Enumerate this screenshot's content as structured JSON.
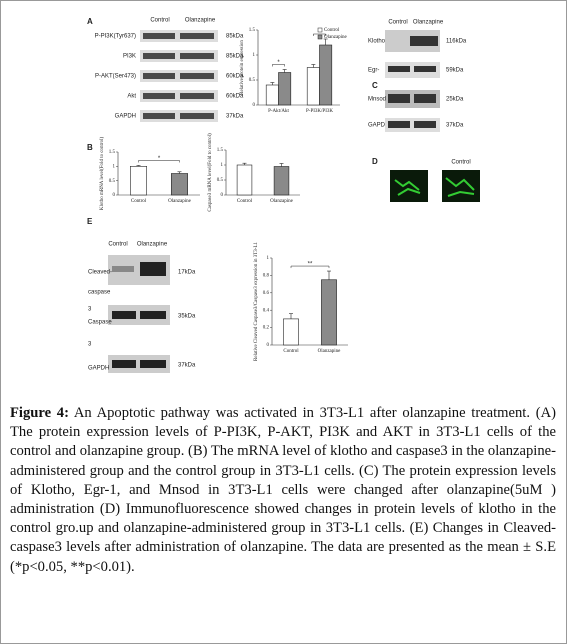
{
  "chart_data": [
    {
      "type": "bar",
      "ylabel": "Relative protein expression",
      "categories": [
        "P-Akt/Akt",
        "P-PI3K/PI3K"
      ],
      "series": [
        {
          "name": "Control",
          "color": "#ffffff",
          "values": [
            0.4,
            0.75
          ],
          "errors": [
            0.05,
            0.06
          ]
        },
        {
          "name": "Olanzapine",
          "color": "#8a8a8a",
          "values": [
            0.65,
            1.2
          ],
          "errors": [
            0.06,
            0.12
          ]
        }
      ],
      "ylim": [
        0,
        1.5
      ],
      "yticks": [
        0,
        0.5,
        1,
        1.5
      ],
      "annotations": [
        "*",
        "*"
      ],
      "legend": "top-right"
    },
    {
      "type": "bar",
      "ylabel": "Klotho mRNA level(Fold to control)",
      "categories": [
        "Control",
        "Olanzapine"
      ],
      "values": [
        1,
        0.75
      ],
      "errors": [
        0.03,
        0.06
      ],
      "colors": [
        "#ffffff",
        "#8a8a8a"
      ],
      "ylim": [
        0,
        1.5
      ],
      "yticks": [
        0,
        0.5,
        1,
        1.5
      ],
      "annotations": [
        "*"
      ]
    },
    {
      "type": "bar",
      "ylabel": "Caspase3 mRNA level(Fold to control)",
      "categories": [
        "Control",
        "Olanzapine"
      ],
      "values": [
        1,
        0.95
      ],
      "errors": [
        0.06,
        0.1
      ],
      "colors": [
        "#ffffff",
        "#8a8a8a"
      ],
      "ylim": [
        0,
        1.5
      ],
      "yticks": [
        0,
        0.5,
        1,
        1.5
      ]
    },
    {
      "type": "bar",
      "ylabel": "Relative Cleaved Caspase3/Caspase3 expression in 3T3-L1",
      "categories": [
        "Control",
        "Olanzapine"
      ],
      "values": [
        0.3,
        0.75
      ],
      "errors": [
        0.06,
        0.1
      ],
      "colors": [
        "#ffffff",
        "#8a8a8a"
      ],
      "ylim": [
        0,
        1
      ],
      "yticks": [
        0,
        0.2,
        0.4,
        0.6,
        0.8,
        1
      ],
      "annotations": [
        "**"
      ]
    }
  ],
  "figure": {
    "panel_a": {
      "letter": "A",
      "columns": [
        "Control",
        "Olanzapine"
      ],
      "bands": [
        "P-PI3K(Tyr637)",
        "PI3K",
        "P-AKT(Ser473)",
        "Akt",
        "GAPDH"
      ],
      "sizes": [
        "85kDa",
        "85kDa",
        "60kDa",
        "60kDa",
        "37kDa"
      ]
    },
    "panel_b": {
      "letter": "B"
    },
    "panel_c": {
      "letter": "C",
      "columns": [
        "Control",
        "Olanzapine"
      ],
      "bands": [
        "Klotho",
        "Egr-",
        "Mnsod",
        "GAPD"
      ],
      "sizes": [
        "116kDa",
        "59kDa",
        "25kDa",
        "37kDa"
      ]
    },
    "panel_d": {
      "letter": "D",
      "column": "Control"
    },
    "panel_e": {
      "letter": "E",
      "columns": [
        "Control",
        "Olanzapine"
      ],
      "bands": [
        "Cleaved-",
        "caspase",
        "3",
        "Caspase",
        "3",
        "GAPDH"
      ],
      "sizes": [
        "17kDa",
        "35kDa",
        "37kDa"
      ]
    },
    "caption": {
      "label": "Figure 4:",
      "text": "An Apoptotic pathway was activated in 3T3-L1 after olanzapine treatment. (A) The protein expression levels of P-PI3K, P-AKT, PI3K and AKT in 3T3-L1 cells of the control and olanzapine group. (B) The mRNA level of klotho and caspase3 in the olanzapine-administered group and the control group in 3T3-L1 cells. (C) The protein expression levels of Klotho, Egr-1, and Mnsod in 3T3-L1 cells were changed after olanzapine(5uM ) administration (D) Immunofluorescence showed changes in protein levels of klotho in the control gro.up and olanzapine-administered group in 3T3-L1 cells. (E) Changes in Cleaved-caspase3 levels after administration of olanzapine. The data are presented as the mean ± S.E (*p<0.05, **p<0.01)."
    }
  }
}
